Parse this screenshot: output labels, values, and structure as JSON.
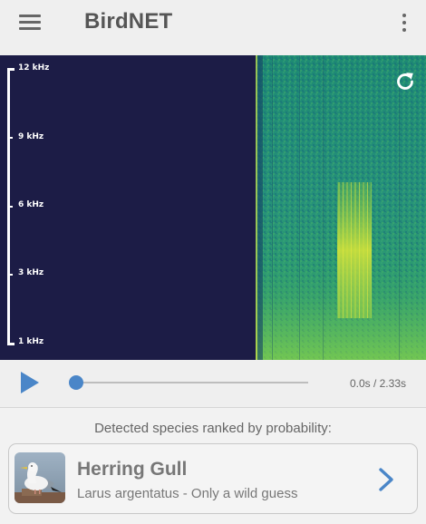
{
  "app_bar": {
    "title": "BirdNET",
    "menu_icon": "hamburger-menu-icon",
    "overflow_icon": "more-vert-icon"
  },
  "spectrogram": {
    "frequency_labels": [
      "12 kHz",
      "9 kHz",
      "6 kHz",
      "3 kHz",
      "1 kHz"
    ],
    "refresh_icon": "refresh-icon",
    "colors": {
      "empty_background": "#1c1c46",
      "signal_low": "#1c7a78",
      "signal_mid": "#3fb46a",
      "signal_high": "#e1e53a"
    }
  },
  "player": {
    "play_icon": "play-icon",
    "time": "0.0s / 2.33s",
    "progress": 0,
    "accent": "#4a86c8"
  },
  "results": {
    "heading": "Detected species ranked by probability:",
    "species": [
      {
        "common_name": "Herring Gull",
        "detail": "Larus argentatus - Only a wild guess",
        "thumbnail_icon": "bird-photo",
        "chevron_icon": "chevron-right-icon"
      }
    ]
  }
}
